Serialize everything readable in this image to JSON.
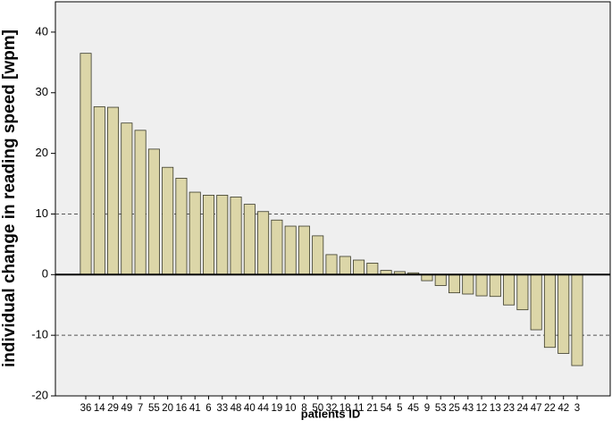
{
  "chart_data": {
    "type": "bar",
    "title": "",
    "xlabel": "patients ID",
    "ylabel": "individual change in reading speed [wpm]",
    "ylim": [
      -20,
      45
    ],
    "yticks": [
      -20,
      -10,
      0,
      10,
      20,
      30,
      40
    ],
    "reference_lines": [
      10,
      0,
      -10
    ],
    "grid": false,
    "legend": "none",
    "colors": {
      "bar_fill": "#dcd6a8",
      "bar_stroke": "#3a3a2a",
      "plot_bg": "#efefef",
      "zero_line": "#000000",
      "ref_line": "#555555"
    },
    "categories": [
      "36",
      "14",
      "29",
      "49",
      "7",
      "55",
      "20",
      "16",
      "41",
      "6",
      "33",
      "48",
      "40",
      "44",
      "19",
      "10",
      "8",
      "50",
      "32",
      "18",
      "11",
      "21",
      "54",
      "5",
      "45",
      "9",
      "53",
      "25",
      "43",
      "12",
      "13",
      "23",
      "24",
      "47",
      "22",
      "42",
      "3"
    ],
    "values": [
      36.5,
      27.7,
      27.6,
      25.0,
      23.8,
      20.7,
      17.7,
      15.9,
      13.6,
      13.1,
      13.1,
      12.8,
      11.6,
      10.4,
      9.0,
      8.0,
      8.0,
      6.4,
      3.3,
      3.0,
      2.4,
      1.9,
      0.7,
      0.5,
      0.3,
      -1.0,
      -1.8,
      -3.0,
      -3.2,
      -3.5,
      -3.6,
      -5.0,
      -5.8,
      -9.1,
      -12.0,
      -13.0,
      -15.0
    ]
  }
}
